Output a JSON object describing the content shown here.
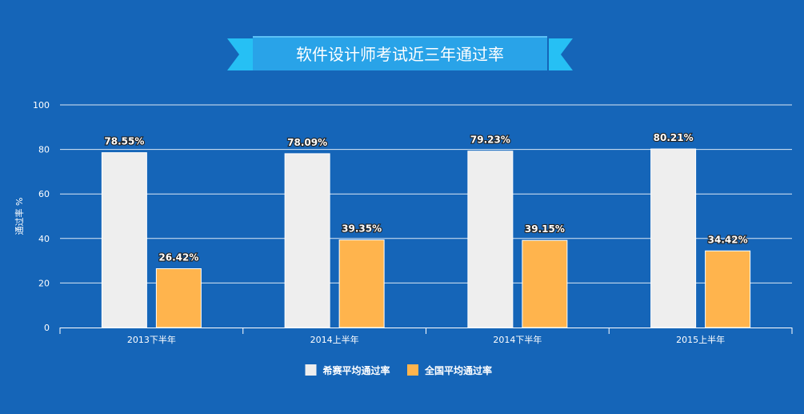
{
  "chart_data": {
    "type": "bar",
    "title": "软件设计师考试近三年通过率",
    "ylabel": "通过率 %",
    "xlabel": "",
    "ylim": [
      0,
      100
    ],
    "yticks": [
      "0",
      "20",
      "40",
      "60",
      "80",
      "100"
    ],
    "grid": true,
    "legend_position": "bottom",
    "categories": [
      "2013下半年",
      "2014上半年",
      "2014下半年",
      "2015上半年"
    ],
    "series": [
      {
        "name": "希赛平均通过率",
        "color": "#eeeeee",
        "values": [
          78.55,
          78.09,
          79.23,
          80.21
        ],
        "labels": [
          "78.55%",
          "78.09%",
          "79.23%",
          "80.21%"
        ]
      },
      {
        "name": "全国平均通过率",
        "color": "#ffb44d",
        "values": [
          26.42,
          39.35,
          39.15,
          34.42
        ],
        "labels": [
          "26.42%",
          "39.35%",
          "39.15%",
          "34.42%"
        ]
      }
    ]
  },
  "colors": {
    "background": "#1565b8",
    "banner": "#29a3e8",
    "ribbon": "#26c0f4"
  }
}
